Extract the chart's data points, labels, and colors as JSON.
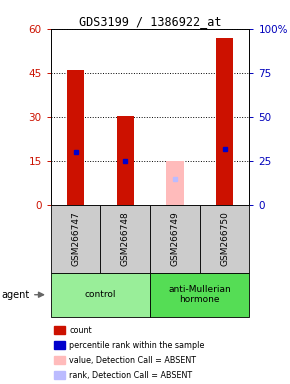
{
  "title": "GDS3199 / 1386922_at",
  "samples": [
    "GSM266747",
    "GSM266748",
    "GSM266749",
    "GSM266750"
  ],
  "bar_values": [
    46,
    30.5,
    15,
    57
  ],
  "bar_colors": [
    "#cc1100",
    "#cc1100",
    "#ffbbbb",
    "#cc1100"
  ],
  "rank_values": [
    30,
    25,
    15,
    32
  ],
  "rank_colors": [
    "#0000cc",
    "#0000cc",
    "#bbbbff",
    "#0000cc"
  ],
  "rank_absent": [
    false,
    false,
    true,
    false
  ],
  "ylim_left": [
    0,
    60
  ],
  "ylim_right": [
    0,
    100
  ],
  "yticks_left": [
    0,
    15,
    30,
    45,
    60
  ],
  "yticks_right": [
    0,
    25,
    50,
    75,
    100
  ],
  "ytick_labels_right": [
    "0",
    "25",
    "50",
    "75",
    "100%"
  ],
  "groups": [
    {
      "label": "control",
      "indices": [
        0,
        1
      ],
      "color": "#99ee99"
    },
    {
      "label": "anti-Mullerian\nhormone",
      "indices": [
        2,
        3
      ],
      "color": "#55dd55"
    }
  ],
  "legend_items": [
    {
      "color": "#cc1100",
      "label": "count"
    },
    {
      "color": "#0000cc",
      "label": "percentile rank within the sample"
    },
    {
      "color": "#ffbbbb",
      "label": "value, Detection Call = ABSENT"
    },
    {
      "color": "#bbbbff",
      "label": "rank, Detection Call = ABSENT"
    }
  ],
  "agent_label": "agent",
  "bar_width": 0.35,
  "background_color": "#ffffff",
  "left_tick_color": "#cc1100",
  "right_tick_color": "#0000bb"
}
